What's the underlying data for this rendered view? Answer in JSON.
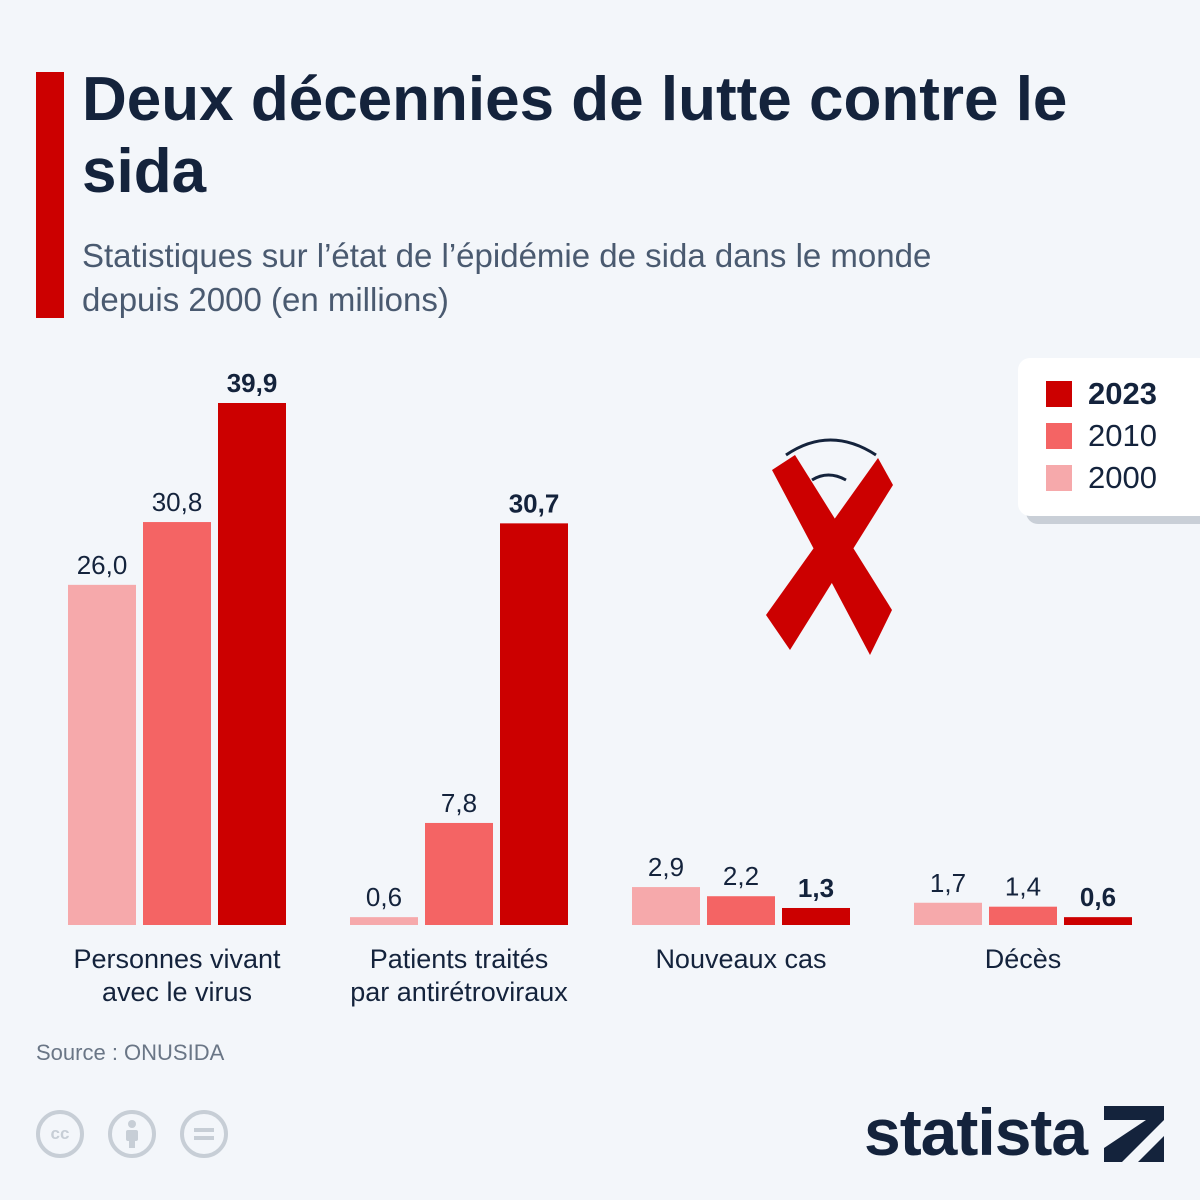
{
  "header": {
    "title": "Deux décennies de lutte contre le sida",
    "subtitle": "Statistiques sur l’état de l’épidémie de sida dans le monde depuis 2000 (en millions)"
  },
  "chart_data": {
    "type": "bar",
    "categories": [
      [
        "Personnes vivant",
        "avec le virus"
      ],
      [
        "Patients traités",
        "par antirétroviraux"
      ],
      [
        "Nouveaux cas"
      ],
      [
        "Décès"
      ]
    ],
    "series": [
      {
        "name": "2000",
        "values": [
          26.0,
          0.6,
          2.9,
          1.7
        ],
        "labels": [
          "26,0",
          "0,6",
          "2,9",
          "1,7"
        ],
        "color": "#f6a9ab"
      },
      {
        "name": "2010",
        "values": [
          30.8,
          7.8,
          2.2,
          1.4
        ],
        "labels": [
          "30,8",
          "7,8",
          "2,2",
          "1,4"
        ],
        "color": "#f46464"
      },
      {
        "name": "2023",
        "values": [
          39.9,
          30.7,
          1.3,
          0.6
        ],
        "labels": [
          "39,9",
          "30,7",
          "1,3",
          "0,6"
        ],
        "color": "#cc0000"
      }
    ],
    "ylim": [
      0,
      39.9
    ],
    "grid": false,
    "legend": "top-right"
  },
  "legend": [
    {
      "label": "2023",
      "color": "#cc0000",
      "bold": true
    },
    {
      "label": "2010",
      "color": "#f46464",
      "bold": false
    },
    {
      "label": "2000",
      "color": "#f6a9ab",
      "bold": false
    }
  ],
  "source": "Source : ONUSIDA",
  "footer": {
    "license_icons": [
      "cc-icon",
      "attribution-icon",
      "no-derivatives-icon"
    ],
    "cc_text": "cc",
    "brand": "statista"
  },
  "colors": {
    "accent": "#cc0000",
    "text": "#14233c"
  }
}
